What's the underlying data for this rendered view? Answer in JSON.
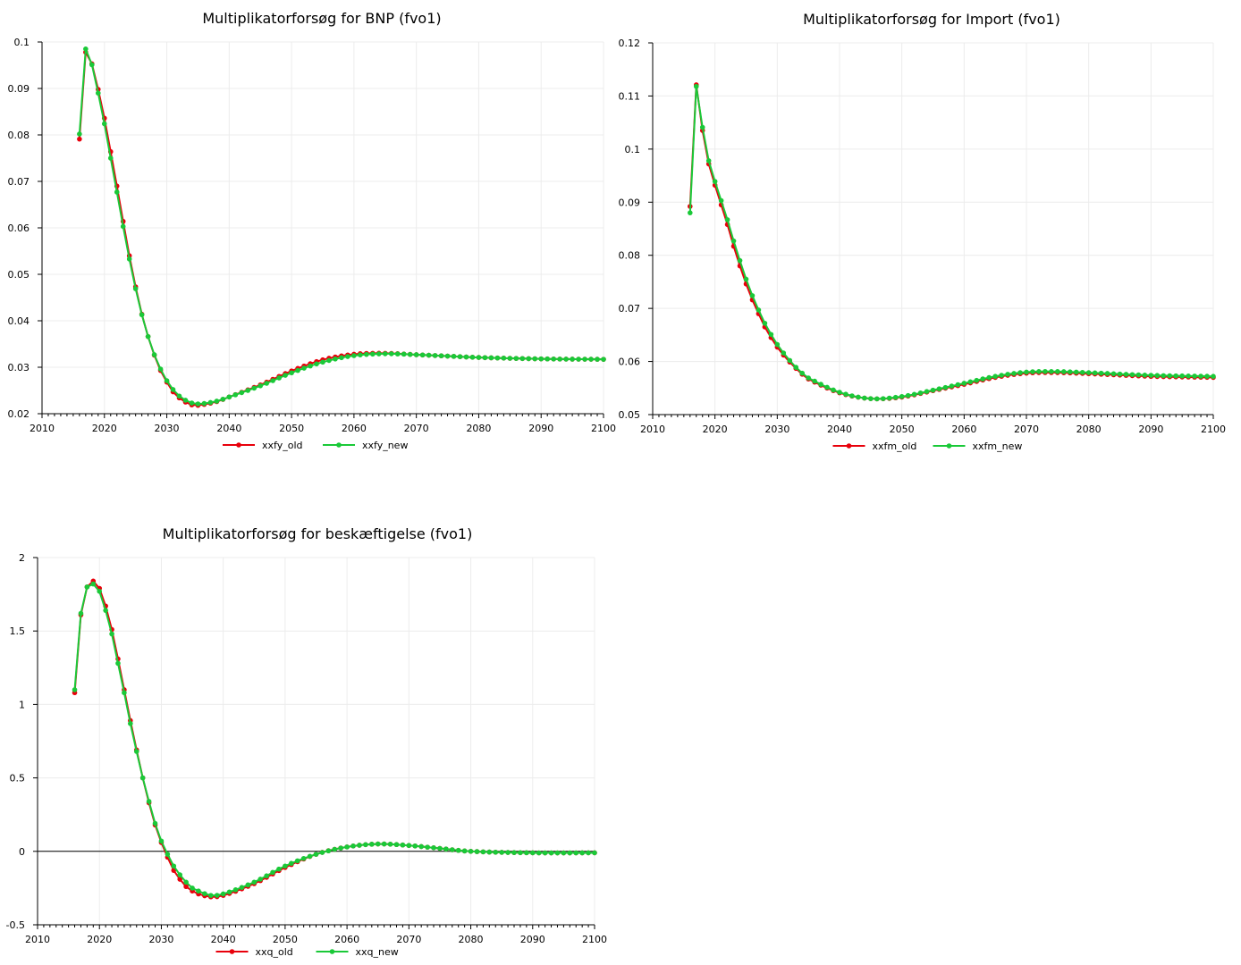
{
  "chart_data": [
    {
      "type": "line",
      "title": "Multiplikatorforsøg for BNP (fvo1)",
      "xlabel": "",
      "ylabel": "",
      "xlim": [
        2010,
        2100
      ],
      "ylim": [
        0.02,
        0.1
      ],
      "xticks": [
        2010,
        2020,
        2030,
        2040,
        2050,
        2060,
        2070,
        2080,
        2090,
        2100
      ],
      "yticks": [
        0.02,
        0.03,
        0.04,
        0.05,
        0.06,
        0.07,
        0.08,
        0.09,
        0.1
      ],
      "ytick_labels": [
        "0.02",
        "0.03",
        "0.04",
        "0.05",
        "0.06",
        "0.07",
        "0.08",
        "0.09",
        "0.1"
      ],
      "grid": true,
      "legend": "bottom-center",
      "zero_line": false,
      "knots": {
        "xxfy_old": [
          [
            2016,
            0.0791
          ],
          [
            2017,
            0.0978
          ],
          [
            2018,
            0.0953
          ],
          [
            2019,
            0.0898
          ],
          [
            2020,
            0.0836
          ],
          [
            2021,
            0.0764
          ],
          [
            2022,
            0.069
          ],
          [
            2023,
            0.0614
          ],
          [
            2024,
            0.054
          ],
          [
            2025,
            0.0473
          ],
          [
            2026,
            0.0414
          ],
          [
            2027,
            0.0366
          ],
          [
            2028,
            0.0326
          ],
          [
            2029,
            0.0293
          ],
          [
            2030,
            0.0268
          ],
          [
            2031,
            0.0247
          ],
          [
            2032,
            0.0234
          ],
          [
            2033,
            0.0225
          ],
          [
            2034,
            0.0219
          ],
          [
            2035,
            0.0218
          ],
          [
            2036,
            0.022
          ],
          [
            2038,
            0.0226
          ],
          [
            2040,
            0.0236
          ],
          [
            2045,
            0.0262
          ],
          [
            2050,
            0.0292
          ],
          [
            2055,
            0.0316
          ],
          [
            2060,
            0.0328
          ],
          [
            2065,
            0.033
          ],
          [
            2070,
            0.0327
          ],
          [
            2075,
            0.0324
          ],
          [
            2080,
            0.0321
          ],
          [
            2090,
            0.0318
          ],
          [
            2100,
            0.0317
          ]
        ],
        "xxfy_new": [
          [
            2016,
            0.0802
          ],
          [
            2017,
            0.0985
          ],
          [
            2018,
            0.0951
          ],
          [
            2019,
            0.089
          ],
          [
            2020,
            0.0824
          ],
          [
            2021,
            0.075
          ],
          [
            2022,
            0.0677
          ],
          [
            2023,
            0.0603
          ],
          [
            2024,
            0.0533
          ],
          [
            2025,
            0.0469
          ],
          [
            2026,
            0.0413
          ],
          [
            2027,
            0.0366
          ],
          [
            2028,
            0.0327
          ],
          [
            2029,
            0.0296
          ],
          [
            2030,
            0.0271
          ],
          [
            2031,
            0.0252
          ],
          [
            2032,
            0.0238
          ],
          [
            2033,
            0.0229
          ],
          [
            2034,
            0.0223
          ],
          [
            2035,
            0.0221
          ],
          [
            2036,
            0.0222
          ],
          [
            2038,
            0.0227
          ],
          [
            2040,
            0.0236
          ],
          [
            2045,
            0.026
          ],
          [
            2050,
            0.0288
          ],
          [
            2055,
            0.0311
          ],
          [
            2060,
            0.0325
          ],
          [
            2065,
            0.0329
          ],
          [
            2070,
            0.0327
          ],
          [
            2075,
            0.0324
          ],
          [
            2080,
            0.0321
          ],
          [
            2090,
            0.0318
          ],
          [
            2100,
            0.0317
          ]
        ]
      },
      "series": [
        {
          "name": "xxfy_old",
          "color": "#e8000b"
        },
        {
          "name": "xxfy_new",
          "color": "#1ac938"
        }
      ]
    },
    {
      "type": "line",
      "title": "Multiplikatorforsøg for Import (fvo1)",
      "xlabel": "",
      "ylabel": "",
      "xlim": [
        2010,
        2100
      ],
      "ylim": [
        0.05,
        0.12
      ],
      "xticks": [
        2010,
        2020,
        2030,
        2040,
        2050,
        2060,
        2070,
        2080,
        2090,
        2100
      ],
      "yticks": [
        0.05,
        0.06,
        0.07,
        0.08,
        0.09,
        0.1,
        0.11,
        0.12
      ],
      "ytick_labels": [
        "0.05",
        "0.06",
        "0.07",
        "0.08",
        "0.09",
        "0.1",
        "0.11",
        "0.12"
      ],
      "grid": true,
      "legend": "bottom-center",
      "zero_line": false,
      "knots": {
        "xxfm_old": [
          [
            2016,
            0.0892
          ],
          [
            2017,
            0.1121
          ],
          [
            2018,
            0.1035
          ],
          [
            2019,
            0.0972
          ],
          [
            2020,
            0.0932
          ],
          [
            2021,
            0.0895
          ],
          [
            2022,
            0.0858
          ],
          [
            2023,
            0.0817
          ],
          [
            2024,
            0.078
          ],
          [
            2025,
            0.0746
          ],
          [
            2026,
            0.0716
          ],
          [
            2027,
            0.069
          ],
          [
            2028,
            0.0665
          ],
          [
            2029,
            0.0645
          ],
          [
            2030,
            0.0627
          ],
          [
            2031,
            0.0612
          ],
          [
            2032,
            0.0599
          ],
          [
            2033,
            0.0587
          ],
          [
            2034,
            0.0576
          ],
          [
            2035,
            0.0567
          ],
          [
            2040,
            0.0541
          ],
          [
            2045,
            0.053
          ],
          [
            2050,
            0.0533
          ],
          [
            2055,
            0.0545
          ],
          [
            2060,
            0.0557
          ],
          [
            2065,
            0.057
          ],
          [
            2070,
            0.0578
          ],
          [
            2075,
            0.0579
          ],
          [
            2080,
            0.0577
          ],
          [
            2090,
            0.0572
          ],
          [
            2100,
            0.057
          ]
        ],
        "xxfm_new": [
          [
            2016,
            0.088
          ],
          [
            2017,
            0.1118
          ],
          [
            2018,
            0.1041
          ],
          [
            2019,
            0.0978
          ],
          [
            2020,
            0.0939
          ],
          [
            2021,
            0.0903
          ],
          [
            2022,
            0.0867
          ],
          [
            2023,
            0.0827
          ],
          [
            2024,
            0.079
          ],
          [
            2025,
            0.0755
          ],
          [
            2026,
            0.0724
          ],
          [
            2027,
            0.0697
          ],
          [
            2028,
            0.0672
          ],
          [
            2029,
            0.0651
          ],
          [
            2030,
            0.0632
          ],
          [
            2031,
            0.0616
          ],
          [
            2032,
            0.0602
          ],
          [
            2033,
            0.0589
          ],
          [
            2034,
            0.0578
          ],
          [
            2035,
            0.0569
          ],
          [
            2040,
            0.0542
          ],
          [
            2045,
            0.053
          ],
          [
            2050,
            0.0534
          ],
          [
            2055,
            0.0546
          ],
          [
            2060,
            0.0559
          ],
          [
            2065,
            0.0572
          ],
          [
            2070,
            0.058
          ],
          [
            2075,
            0.0581
          ],
          [
            2080,
            0.0579
          ],
          [
            2090,
            0.0574
          ],
          [
            2100,
            0.0572
          ]
        ]
      },
      "series": [
        {
          "name": "xxfm_old",
          "color": "#e8000b"
        },
        {
          "name": "xxfm_new",
          "color": "#1ac938"
        }
      ]
    },
    {
      "type": "line",
      "title": "Multiplikatorforsøg for beskæftigelse (fvo1)",
      "xlabel": "",
      "ylabel": "",
      "xlim": [
        2010,
        2100
      ],
      "ylim": [
        -0.5,
        2
      ],
      "xticks": [
        2010,
        2020,
        2030,
        2040,
        2050,
        2060,
        2070,
        2080,
        2090,
        2100
      ],
      "yticks": [
        -0.5,
        0,
        0.5,
        1,
        1.5,
        2
      ],
      "ytick_labels": [
        "-0.5",
        "0",
        "0.5",
        "1",
        "1.5",
        "2"
      ],
      "grid": true,
      "legend": "bottom-center",
      "zero_line": true,
      "knots": {
        "xxq_old": [
          [
            2016,
            1.08
          ],
          [
            2017,
            1.61
          ],
          [
            2018,
            1.8
          ],
          [
            2019,
            1.84
          ],
          [
            2020,
            1.79
          ],
          [
            2021,
            1.67
          ],
          [
            2022,
            1.51
          ],
          [
            2023,
            1.31
          ],
          [
            2024,
            1.1
          ],
          [
            2025,
            0.89
          ],
          [
            2026,
            0.69
          ],
          [
            2027,
            0.5
          ],
          [
            2028,
            0.33
          ],
          [
            2029,
            0.18
          ],
          [
            2030,
            0.06
          ],
          [
            2031,
            -0.04
          ],
          [
            2032,
            -0.13
          ],
          [
            2033,
            -0.19
          ],
          [
            2034,
            -0.24
          ],
          [
            2035,
            -0.27
          ],
          [
            2036,
            -0.29
          ],
          [
            2038,
            -0.31
          ],
          [
            2040,
            -0.3
          ],
          [
            2045,
            -0.22
          ],
          [
            2050,
            -0.11
          ],
          [
            2055,
            -0.02
          ],
          [
            2060,
            0.03
          ],
          [
            2065,
            0.05
          ],
          [
            2070,
            0.04
          ],
          [
            2075,
            0.02
          ],
          [
            2080,
            0.0
          ],
          [
            2090,
            -0.01
          ],
          [
            2100,
            -0.01
          ]
        ],
        "xxq_new": [
          [
            2016,
            1.1
          ],
          [
            2017,
            1.62
          ],
          [
            2018,
            1.8
          ],
          [
            2019,
            1.82
          ],
          [
            2020,
            1.77
          ],
          [
            2021,
            1.64
          ],
          [
            2022,
            1.48
          ],
          [
            2023,
            1.28
          ],
          [
            2024,
            1.08
          ],
          [
            2025,
            0.87
          ],
          [
            2026,
            0.68
          ],
          [
            2027,
            0.5
          ],
          [
            2028,
            0.34
          ],
          [
            2029,
            0.19
          ],
          [
            2030,
            0.07
          ],
          [
            2031,
            -0.02
          ],
          [
            2032,
            -0.1
          ],
          [
            2033,
            -0.16
          ],
          [
            2034,
            -0.21
          ],
          [
            2035,
            -0.25
          ],
          [
            2036,
            -0.27
          ],
          [
            2038,
            -0.3
          ],
          [
            2040,
            -0.29
          ],
          [
            2045,
            -0.21
          ],
          [
            2050,
            -0.1
          ],
          [
            2055,
            -0.02
          ],
          [
            2060,
            0.03
          ],
          [
            2065,
            0.05
          ],
          [
            2070,
            0.04
          ],
          [
            2075,
            0.02
          ],
          [
            2080,
            0.0
          ],
          [
            2090,
            -0.01
          ],
          [
            2100,
            -0.01
          ]
        ]
      },
      "series": [
        {
          "name": "xxq_old",
          "color": "#e8000b"
        },
        {
          "name": "xxq_new",
          "color": "#1ac938"
        }
      ]
    }
  ]
}
